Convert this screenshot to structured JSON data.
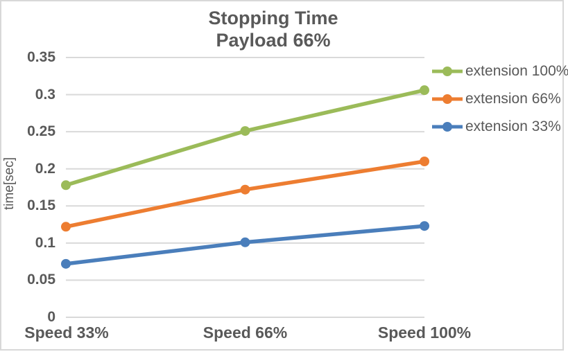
{
  "title": {
    "line1": "Stopping Time",
    "line2": "Payload 66%"
  },
  "y_axis": {
    "title": "time[sec]",
    "tick_labels": [
      "0",
      "0.05",
      "0.1",
      "0.15",
      "0.2",
      "0.25",
      "0.3",
      "0.35"
    ],
    "min": 0,
    "max": 0.35,
    "step": 0.05
  },
  "x_axis": {
    "categories": [
      "Speed 33%",
      "Speed 66%",
      "Speed 100%"
    ]
  },
  "chart_data": {
    "type": "line",
    "title": "Stopping Time",
    "subtitle": "Payload 66%",
    "xlabel": "",
    "ylabel": "time[sec]",
    "categories": [
      "Speed 33%",
      "Speed 66%",
      "Speed 100%"
    ],
    "series": [
      {
        "name": "extension 100%",
        "color": "#9BBB59",
        "values": [
          0.178,
          0.251,
          0.306
        ]
      },
      {
        "name": "extension 66%",
        "color": "#ED7D31",
        "values": [
          0.122,
          0.172,
          0.21
        ]
      },
      {
        "name": "extension 33%",
        "color": "#4A7EBB",
        "values": [
          0.072,
          0.101,
          0.123
        ]
      }
    ],
    "ylim": [
      0,
      0.35
    ],
    "ytick_step": 0.05,
    "grid": true,
    "legend_position": "right"
  },
  "colors": {
    "text": "#595959",
    "gridline": "#D9D9D9",
    "frame_border": "#D8D8D8",
    "background": "#FFFFFF"
  }
}
